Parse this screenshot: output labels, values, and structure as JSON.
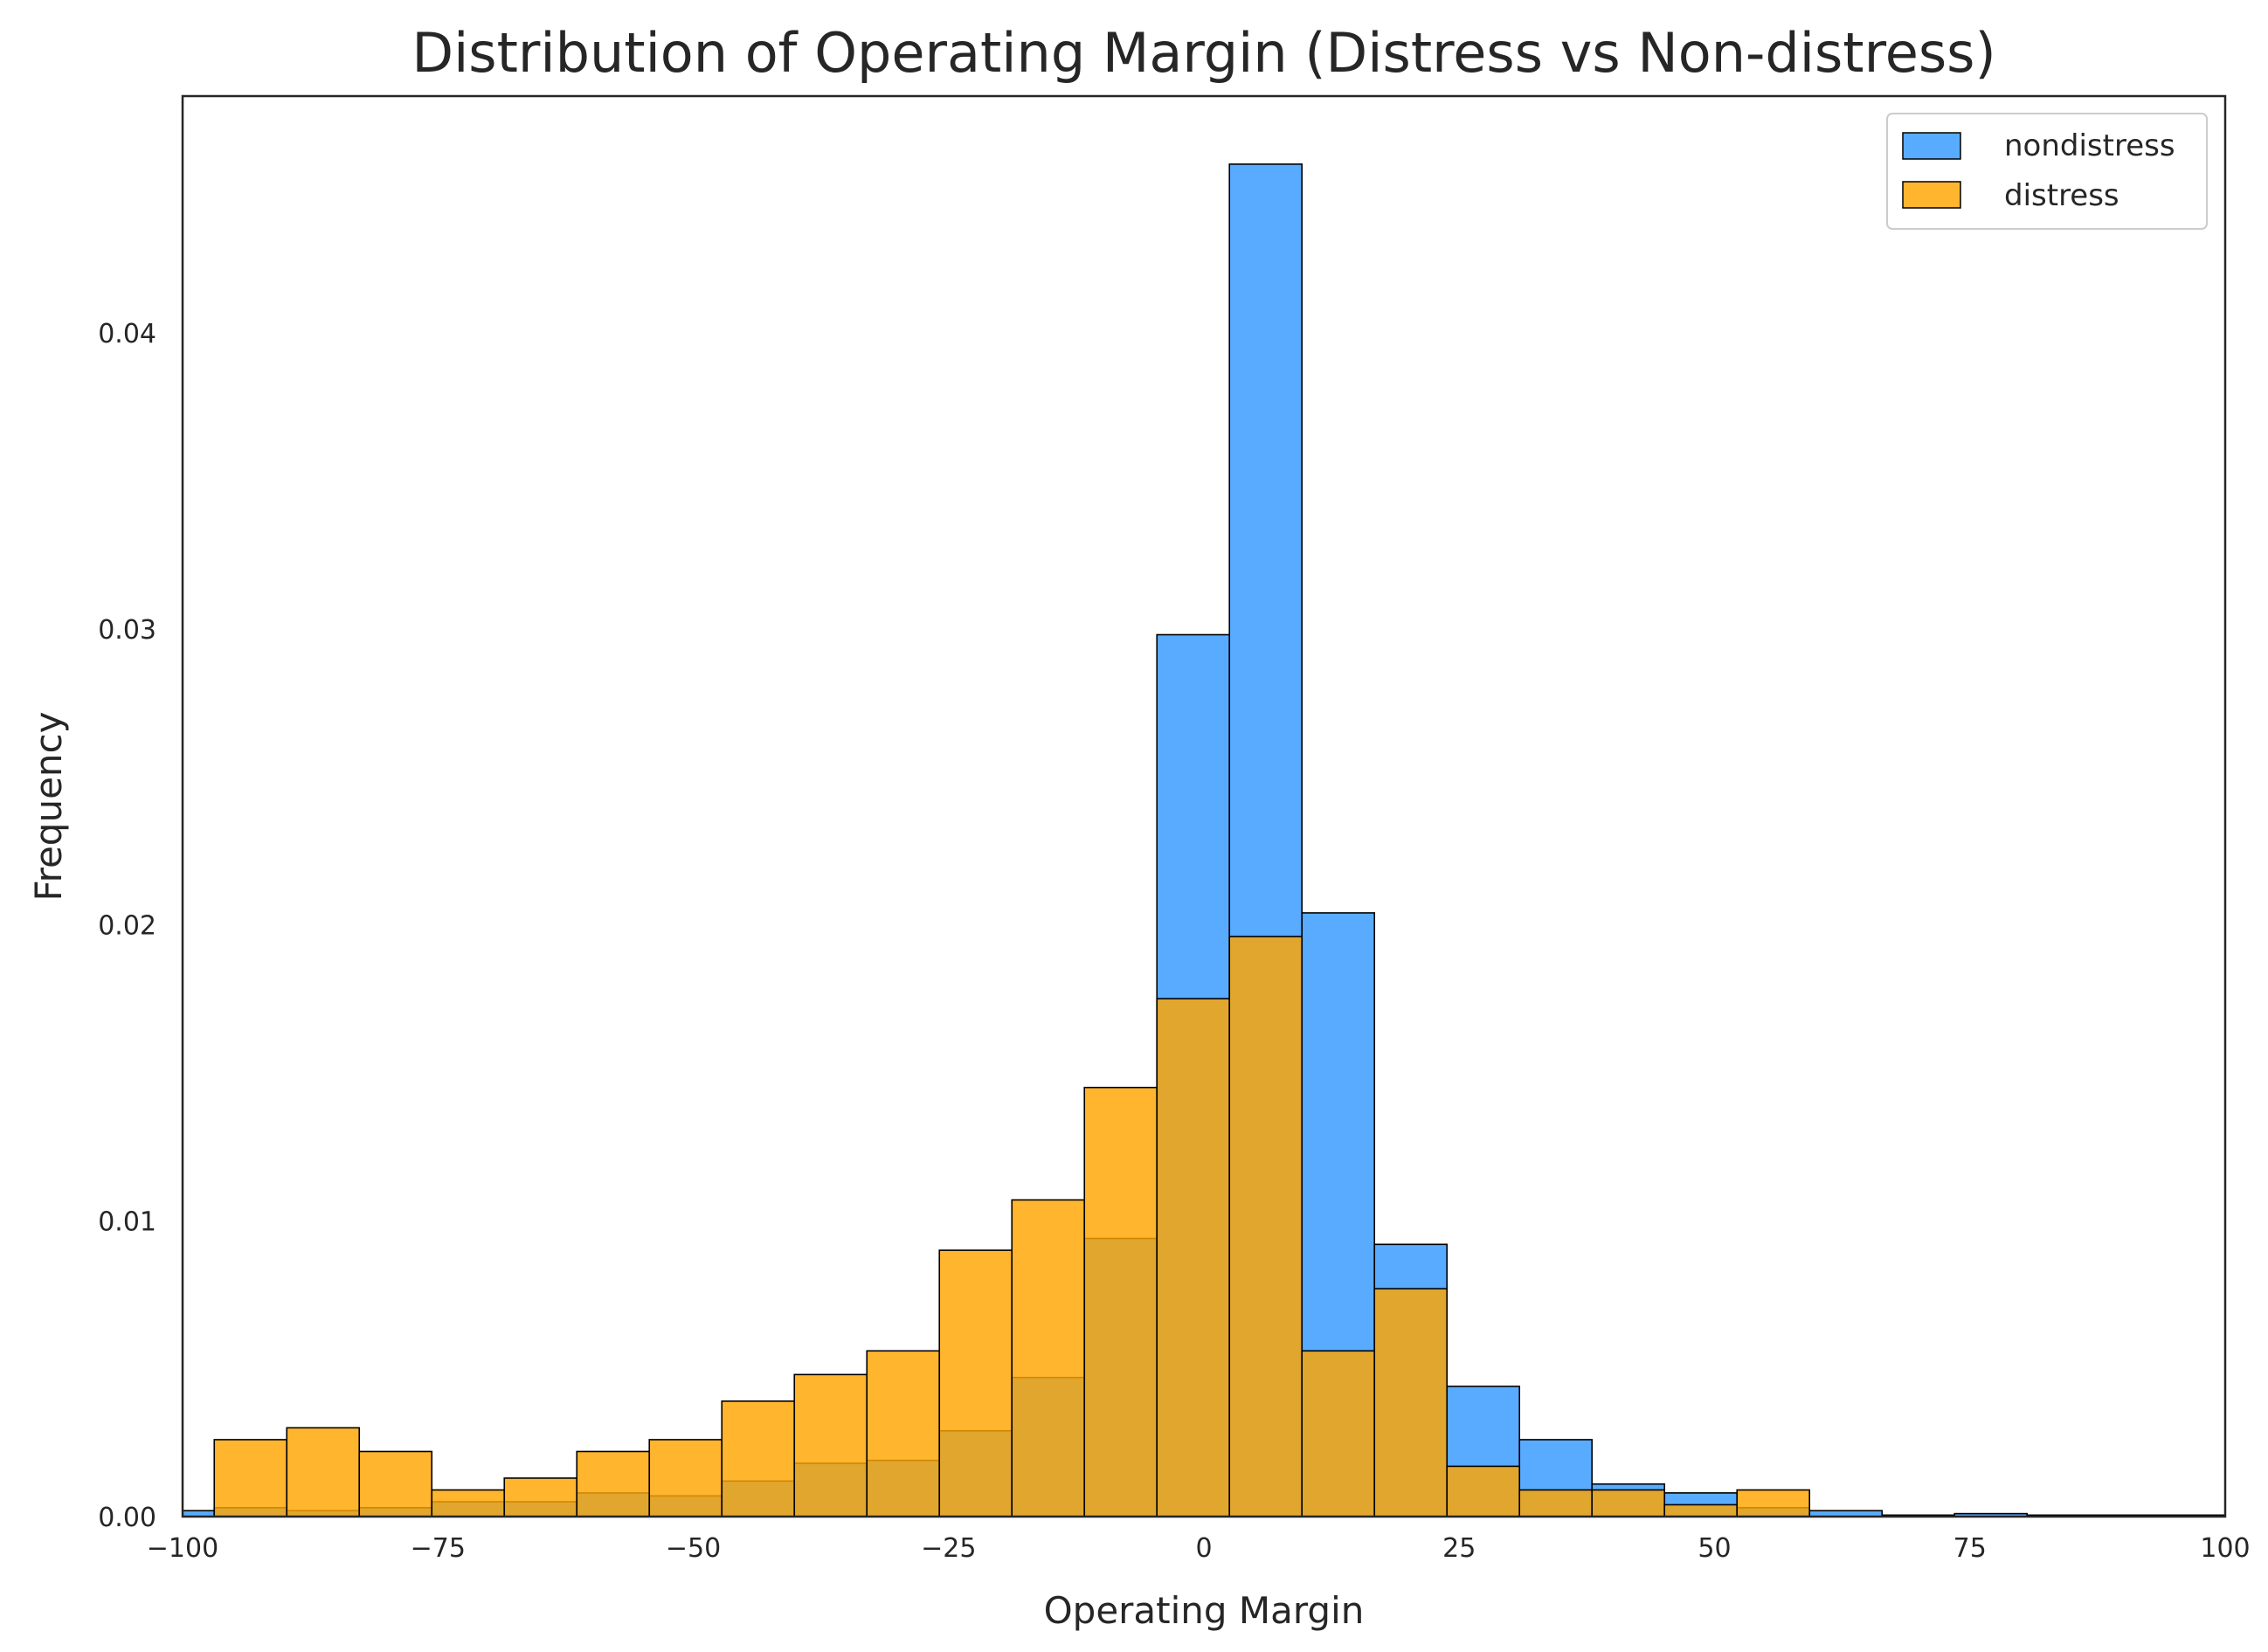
{
  "chart_data": {
    "type": "bar",
    "title": "Distribution of Operating Margin (Distress vs Non-distress)",
    "xlabel": "Operating Margin",
    "ylabel": "Frequency",
    "xlim": [
      -100,
      100
    ],
    "ylim": [
      0,
      0.048
    ],
    "xticks": [
      -100,
      -75,
      -50,
      -25,
      0,
      25,
      50,
      75,
      100
    ],
    "xtick_labels": [
      "−100",
      "−75",
      "−50",
      "−25",
      "0",
      "25",
      "50",
      "75",
      "100"
    ],
    "yticks": [
      0,
      0.01,
      0.02,
      0.03,
      0.04
    ],
    "ytick_labels": [
      "0.00",
      "0.01",
      "0.02",
      "0.03",
      "0.04"
    ],
    "grid": false,
    "legend_position": "top-right",
    "bin_width": 7.1,
    "series": [
      {
        "name": "nondistress",
        "color": "#3399ff",
        "bins": [
          {
            "x0": -104.0,
            "value": 0.0002
          },
          {
            "x0": -96.9,
            "value": 0.0003
          },
          {
            "x0": -89.8,
            "value": 0.0002
          },
          {
            "x0": -82.7,
            "value": 0.0003
          },
          {
            "x0": -75.6,
            "value": 0.0005
          },
          {
            "x0": -68.5,
            "value": 0.0005
          },
          {
            "x0": -61.4,
            "value": 0.0008
          },
          {
            "x0": -54.3,
            "value": 0.0007
          },
          {
            "x0": -47.2,
            "value": 0.0012
          },
          {
            "x0": -40.1,
            "value": 0.0018
          },
          {
            "x0": -33.0,
            "value": 0.0019
          },
          {
            "x0": -25.9,
            "value": 0.0029
          },
          {
            "x0": -18.8,
            "value": 0.0047
          },
          {
            "x0": -11.7,
            "value": 0.0094
          },
          {
            "x0": -4.6,
            "value": 0.0298
          },
          {
            "x0": 2.5,
            "value": 0.0457
          },
          {
            "x0": 9.6,
            "value": 0.0204
          },
          {
            "x0": 16.7,
            "value": 0.0092
          },
          {
            "x0": 23.8,
            "value": 0.0044
          },
          {
            "x0": 30.9,
            "value": 0.0026
          },
          {
            "x0": 38.0,
            "value": 0.0011
          },
          {
            "x0": 45.1,
            "value": 0.0008
          },
          {
            "x0": 52.2,
            "value": 0.0003
          },
          {
            "x0": 59.3,
            "value": 0.0002
          },
          {
            "x0": 66.4,
            "value": 5e-05
          },
          {
            "x0": 73.5,
            "value": 0.0001
          },
          {
            "x0": 80.6,
            "value": 5e-05
          },
          {
            "x0": 87.7,
            "value": 5e-05
          },
          {
            "x0": 94.8,
            "value": 5e-05
          }
        ]
      },
      {
        "name": "distress",
        "color": "#ffa500",
        "bins": [
          {
            "x0": -96.9,
            "value": 0.0026
          },
          {
            "x0": -89.8,
            "value": 0.003
          },
          {
            "x0": -82.7,
            "value": 0.0022
          },
          {
            "x0": -75.6,
            "value": 0.0009
          },
          {
            "x0": -68.5,
            "value": 0.0013
          },
          {
            "x0": -61.4,
            "value": 0.0022
          },
          {
            "x0": -54.3,
            "value": 0.0026
          },
          {
            "x0": -47.2,
            "value": 0.0039
          },
          {
            "x0": -40.1,
            "value": 0.0048
          },
          {
            "x0": -33.0,
            "value": 0.0056
          },
          {
            "x0": -25.9,
            "value": 0.009
          },
          {
            "x0": -18.8,
            "value": 0.0107
          },
          {
            "x0": -11.7,
            "value": 0.0145
          },
          {
            "x0": -4.6,
            "value": 0.0175
          },
          {
            "x0": 2.5,
            "value": 0.0196
          },
          {
            "x0": 9.6,
            "value": 0.0056
          },
          {
            "x0": 16.7,
            "value": 0.0077
          },
          {
            "x0": 23.8,
            "value": 0.0017
          },
          {
            "x0": 30.9,
            "value": 0.0009
          },
          {
            "x0": 38.0,
            "value": 0.0009
          },
          {
            "x0": 45.1,
            "value": 0.0004
          },
          {
            "x0": 52.2,
            "value": 0.0009
          }
        ]
      }
    ]
  }
}
